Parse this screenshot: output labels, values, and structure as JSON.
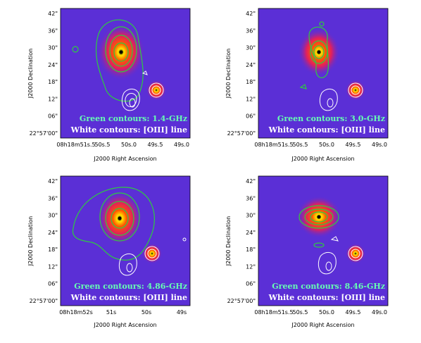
{
  "colors": {
    "background": "#5b2fd6",
    "green_contour": "#2ecc40",
    "white_contour": "#ffffff",
    "green_label": "#66ffb3",
    "white_label": "#ffffff"
  },
  "axes": {
    "ylabel": "J2000 Declination",
    "xlabel": "J2000 Right Ascension"
  },
  "panels": [
    {
      "id": "p1",
      "green_caption": "Green contours: 1.4-GHz",
      "white_caption": "White contours: [OIII] line",
      "y_ticks": [
        "42\"",
        "36\"",
        "30\"",
        "24\"",
        "18\"",
        "12\"",
        "06\"",
        "22°57'00\""
      ],
      "x_ticks": [
        "08h18m51s.5",
        "50s.5",
        "50s.0",
        "49s.5",
        "49s.0"
      ]
    },
    {
      "id": "p2",
      "green_caption": "Green contours: 3.0-GHz",
      "white_caption": "White contours: [OIII] line",
      "y_ticks": [
        "42\"",
        "36\"",
        "30\"",
        "24\"",
        "18\"",
        "12\"",
        "06\"",
        "22°57'00\""
      ],
      "x_ticks": [
        "08h18m51s.5",
        "50s.5",
        "50s.0",
        "49s.5",
        "49s.0"
      ]
    },
    {
      "id": "p3",
      "green_caption": "Green contours: 4.86-GHz",
      "white_caption": "White contours: [OIII] line",
      "y_ticks": [
        "42\"",
        "36\"",
        "30\"",
        "24\"",
        "18\"",
        "12\"",
        "06\"",
        "22°57'00\""
      ],
      "x_ticks": [
        "08h18m52s",
        "51s",
        "50s",
        "49s"
      ]
    },
    {
      "id": "p4",
      "green_caption": "Green contours: 8.46-GHz",
      "white_caption": "White contours: [OIII] line",
      "y_ticks": [
        "42\"",
        "36\"",
        "30\"",
        "24\"",
        "18\"",
        "12\"",
        "06\"",
        "22°57'00\""
      ],
      "x_ticks": [
        "08h18m51s.5",
        "50s.5",
        "50s.0",
        "49s.5",
        "49s.0"
      ]
    }
  ]
}
